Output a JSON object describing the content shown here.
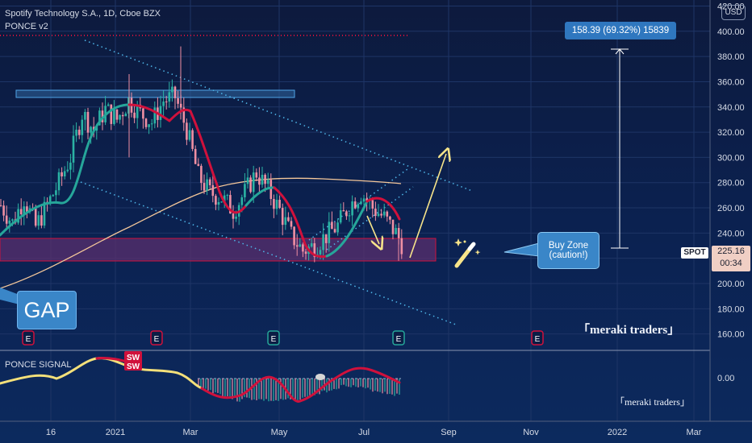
{
  "header": {
    "symbol": "Spotify Technology S.A., 1D, Cboe BZX",
    "indicator": "PONCE v2"
  },
  "currency": "USD",
  "spot": {
    "ticker": "SPOT",
    "price": "225.16",
    "countdown": "00:34"
  },
  "measure": {
    "label": "158.39 (69.32%) 15839",
    "from": 229,
    "to": 387
  },
  "annotations": {
    "gap": "GAP",
    "buy_zone_line1": "Buy Zone",
    "buy_zone_line2": "(caution!)",
    "watermark_main": "「meraki traders」",
    "watermark_sub": "「meraki traders」",
    "wand": "wand-icon"
  },
  "colors": {
    "bull": "#2bb3a4",
    "bear": "#ef8fa3",
    "ponce_up": "#26a69a",
    "ponce_down": "#d0113c",
    "ma_slow": "#f4c79a",
    "trend_dots": "#4fb7e9",
    "zone_fill": "#5a2f6e",
    "zone_border": "#d0113c",
    "resistance": "#3a86c8",
    "arrow": "#f7e48a"
  },
  "events": {
    "earnings": [
      {
        "label": "E",
        "date": "2020-10-29",
        "color": "#d0113c"
      },
      {
        "label": "E",
        "date": "2021-02-03",
        "color": "#d0113c"
      },
      {
        "label": "E",
        "date": "2021-04-28",
        "color": "#26a69a"
      },
      {
        "label": "E",
        "date": "2021-07-28",
        "color": "#26a69a"
      },
      {
        "label": "E",
        "date": "2021-11-03",
        "color": "#d0113c"
      }
    ],
    "signal": {
      "label_top": "SW",
      "label_bottom": "SW",
      "date": "2021-02-10"
    }
  },
  "signal_panel": {
    "title": "PONCE SIGNAL",
    "zero_label": "0.00"
  },
  "chart_data": {
    "type": "candlestick",
    "title": "Spotify Technology S.A., 1D, Cboe BZX",
    "x_ticks": [
      "16",
      "2021",
      "Mar",
      "May",
      "Jul",
      "Sep",
      "Nov",
      "2022",
      "Mar"
    ],
    "y_ticks": [
      160,
      180,
      200,
      220,
      240,
      260,
      280,
      300,
      320,
      340,
      360,
      380,
      400,
      420
    ],
    "ylim": [
      150,
      430
    ],
    "grid": true,
    "price_path": [
      {
        "t": 0,
        "close": 262
      },
      {
        "t": 4,
        "close": 248
      },
      {
        "t": 8,
        "close": 268
      },
      {
        "t": 12,
        "close": 245
      },
      {
        "t": 16,
        "close": 262
      },
      {
        "t": 20,
        "close": 280
      },
      {
        "t": 24,
        "close": 300
      },
      {
        "t": 28,
        "close": 335
      },
      {
        "t": 32,
        "close": 322
      },
      {
        "t": 36,
        "close": 338
      },
      {
        "t": 40,
        "close": 330
      },
      {
        "t": 44,
        "close": 345
      },
      {
        "t": 48,
        "close": 335
      },
      {
        "t": 52,
        "close": 328
      },
      {
        "t": 56,
        "close": 345
      },
      {
        "t": 60,
        "close": 348
      },
      {
        "t": 64,
        "close": 322
      },
      {
        "t": 68,
        "close": 285
      },
      {
        "t": 72,
        "close": 272
      },
      {
        "t": 76,
        "close": 268
      },
      {
        "t": 80,
        "close": 258
      },
      {
        "t": 84,
        "close": 272
      },
      {
        "t": 88,
        "close": 288
      },
      {
        "t": 92,
        "close": 274
      },
      {
        "t": 96,
        "close": 258
      },
      {
        "t": 100,
        "close": 238
      },
      {
        "t": 104,
        "close": 226
      },
      {
        "t": 108,
        "close": 230
      },
      {
        "t": 112,
        "close": 238
      },
      {
        "t": 116,
        "close": 246
      },
      {
        "t": 120,
        "close": 262
      },
      {
        "t": 124,
        "close": 272
      },
      {
        "t": 128,
        "close": 260
      },
      {
        "t": 132,
        "close": 252
      },
      {
        "t": 136,
        "close": 240
      },
      {
        "t": 138,
        "close": 232
      }
    ],
    "levels": {
      "resistance_band": [
        348,
        355
      ],
      "buy_zone": [
        218,
        237
      ],
      "measure_top": 387,
      "measure_bottom": 229
    }
  }
}
